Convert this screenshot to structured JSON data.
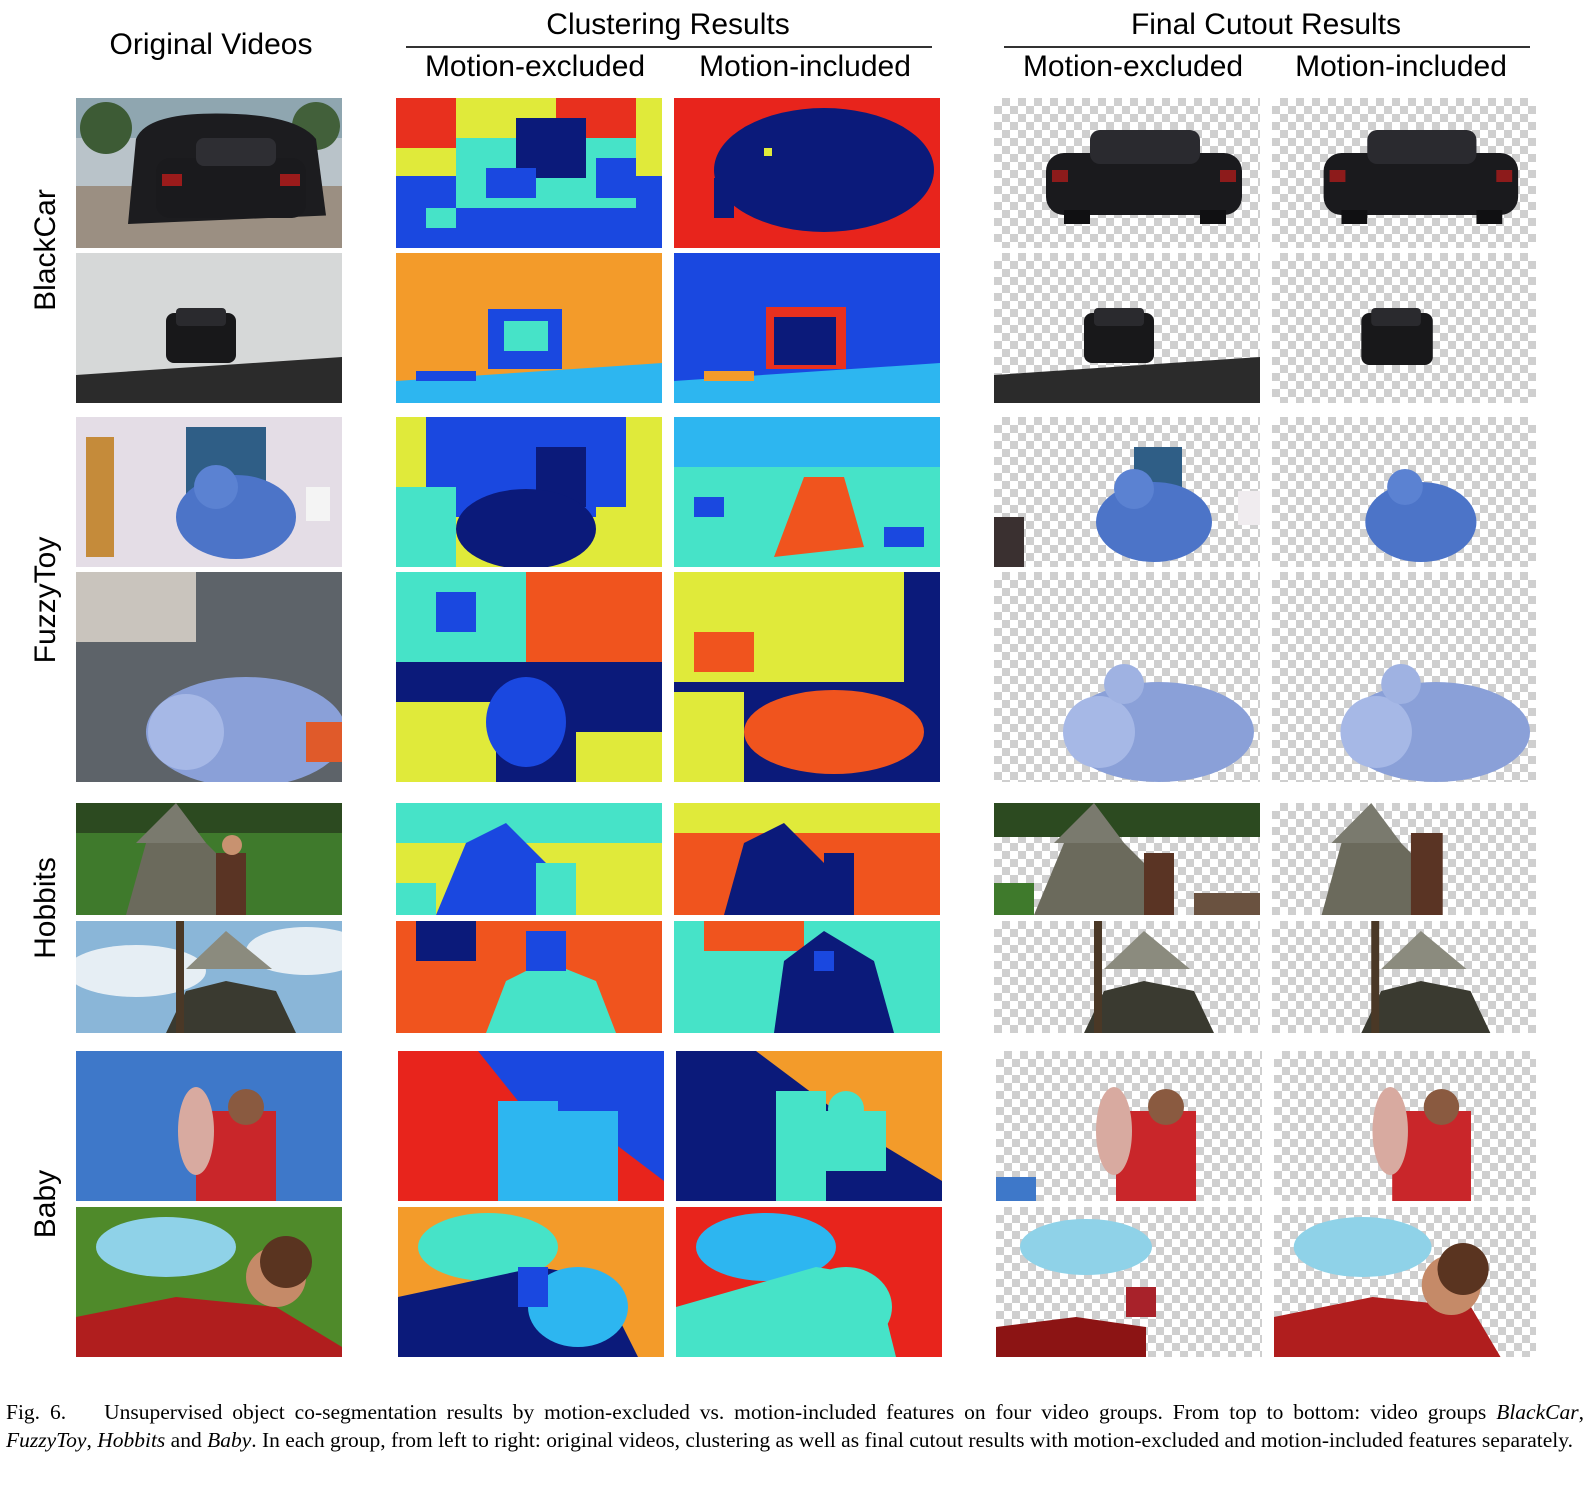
{
  "headers": {
    "original": "Original Videos",
    "clustering": "Clustering Results",
    "final": "Final Cutout Results",
    "motion_excluded": "Motion-excluded",
    "motion_included": "Motion-included"
  },
  "groups": [
    "BlackCar",
    "FuzzyToy",
    "Hobbits",
    "Baby"
  ],
  "caption": {
    "label": "Fig. 6.",
    "part1": "Unsupervised object co-segmentation results by motion-excluded vs. motion-included features on four video groups. From top to bottom: video groups ",
    "g1": "BlackCar",
    "sep1": ", ",
    "g2": "FuzzyToy",
    "sep2": ", ",
    "g3": "Hobbits",
    "sep3": " and ",
    "g4": "Baby",
    "part2": ". In each group, from left to right: original videos, clustering as well as final cutout results with motion-excluded and motion-included features separately."
  }
}
